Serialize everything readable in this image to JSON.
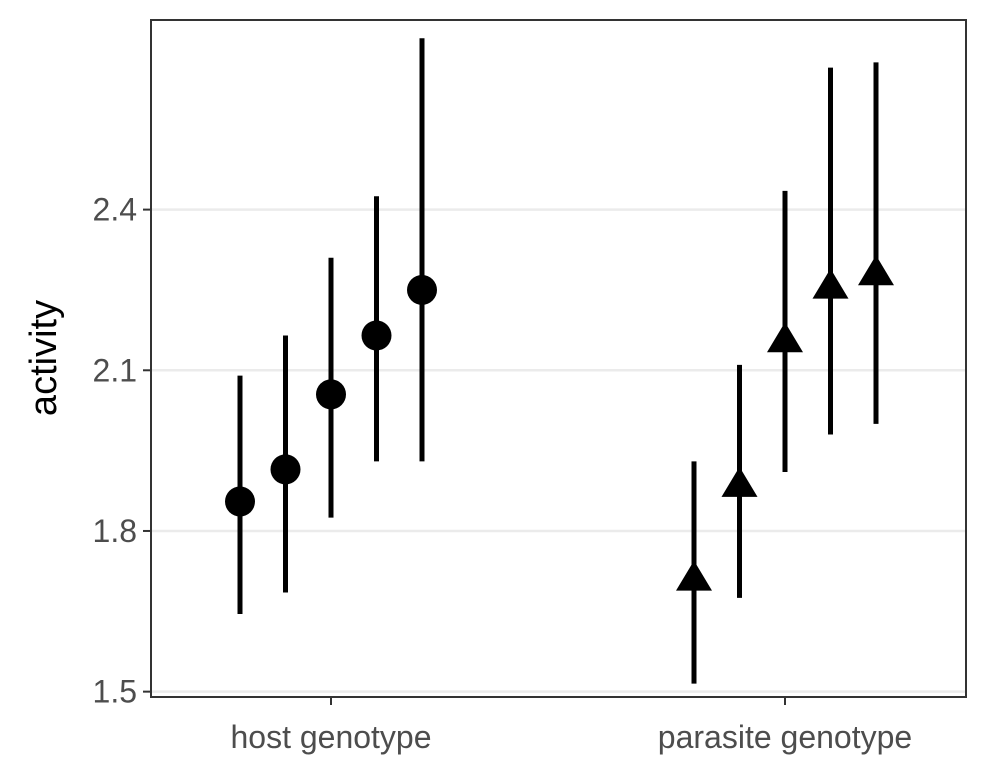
{
  "chart_data": {
    "type": "scatter",
    "title": "",
    "xlabel": "",
    "ylabel": "activity",
    "categories": [
      "host genotype",
      "parasite genotype"
    ],
    "ylim": [
      1.49,
      2.754
    ],
    "yticks": [
      1.5,
      1.8,
      2.1,
      2.4
    ],
    "ytick_labels": [
      "1.5",
      "1.8",
      "2.1",
      "2.4"
    ],
    "grid": {
      "horizontal_major": true,
      "vertical": false
    },
    "legend": "none",
    "series": [
      {
        "category": "host genotype",
        "shape": "circle",
        "points": [
          {
            "y": 1.855,
            "low": 1.645,
            "high": 2.09
          },
          {
            "y": 1.915,
            "low": 1.685,
            "high": 2.165
          },
          {
            "y": 2.055,
            "low": 1.825,
            "high": 2.31
          },
          {
            "y": 2.165,
            "low": 1.93,
            "high": 2.425
          },
          {
            "y": 2.25,
            "low": 1.93,
            "high": 2.72
          }
        ]
      },
      {
        "category": "parasite genotype",
        "shape": "triangle",
        "points": [
          {
            "y": 1.71,
            "low": 1.515,
            "high": 1.93
          },
          {
            "y": 1.885,
            "low": 1.675,
            "high": 2.11
          },
          {
            "y": 2.155,
            "low": 1.91,
            "high": 2.435
          },
          {
            "y": 2.255,
            "low": 1.98,
            "high": 2.665
          },
          {
            "y": 2.28,
            "low": 2.0,
            "high": 2.675
          }
        ]
      }
    ],
    "colors": {
      "marks": "#000000",
      "grid": "#ebebeb",
      "panel_border": "#333333",
      "tick_text": "#4d4d4d"
    }
  }
}
